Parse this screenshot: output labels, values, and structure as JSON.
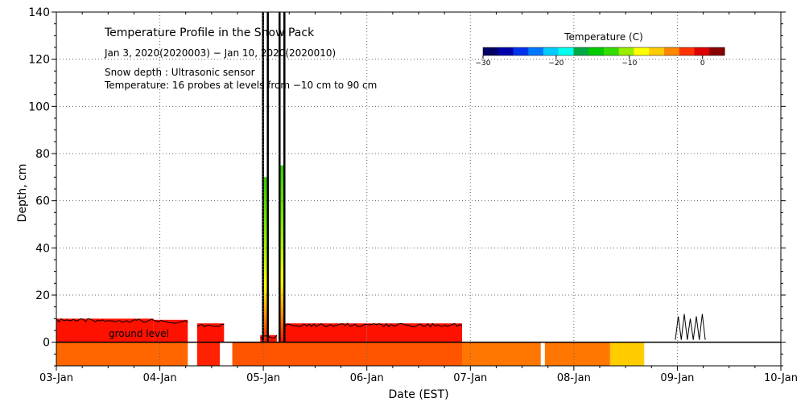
{
  "chart_data": {
    "type": "heatmap",
    "title": "Temperature Profile in the Snow Pack",
    "subtitle": "Jan  3, 2020(2020003) − Jan 10, 2020(2020010)",
    "notes": [
      "Snow depth : Ultrasonic sensor",
      "Temperature: 16 probes at levels from −10 cm to 90 cm"
    ],
    "ground_label": "ground level",
    "xlabel": "Date (EST)",
    "ylabel": "Depth, cm",
    "x_ticks": [
      "03-Jan",
      "04-Jan",
      "05-Jan",
      "06-Jan",
      "07-Jan",
      "08-Jan",
      "09-Jan",
      "10-Jan"
    ],
    "xlim": [
      0,
      7
    ],
    "ylim": [
      -10,
      140
    ],
    "y_ticks": [
      0,
      20,
      40,
      60,
      80,
      100,
      120,
      140
    ],
    "grid": true,
    "colorbar": {
      "title": "Temperature (C)",
      "range": [
        -30,
        3
      ],
      "ticks": [
        -30,
        -20,
        -10,
        0
      ],
      "placement": "top-right",
      "colors": [
        "#000066",
        "#0000aa",
        "#0033ee",
        "#0077ff",
        "#00ccff",
        "#00ffee",
        "#00aa44",
        "#00cc00",
        "#33dd00",
        "#99ee00",
        "#ffff00",
        "#ffcc00",
        "#ff8800",
        "#ff3300",
        "#dd0000",
        "#880000"
      ]
    },
    "series": [
      {
        "name": "snow temperature",
        "x_start": 0.0,
        "x_end": 0.94,
        "top": 10,
        "color": "#ff1100"
      },
      {
        "name": "snow temperature",
        "x_start": 0.94,
        "x_end": 1.27,
        "top": 9.5,
        "color": "#ff1100"
      },
      {
        "name": "snow temperature",
        "x_start": 1.36,
        "x_end": 1.62,
        "top": 8,
        "color": "#ff1100"
      },
      {
        "name": "snow temperature",
        "x_start": 1.97,
        "x_end": 2.13,
        "top": 3,
        "color": "#ff1100"
      },
      {
        "name": "snow temperature",
        "x_start": 2.21,
        "x_end": 3.0,
        "top": 8,
        "color": "#ff1100"
      },
      {
        "name": "snow temperature",
        "x_start": 3.0,
        "x_end": 3.92,
        "top": 8,
        "color": "#ff1100"
      },
      {
        "name": "ground temperature",
        "x_start": 0.0,
        "x_end": 1.27,
        "top": 0,
        "color": "#ff6600"
      },
      {
        "name": "ground temperature",
        "x_start": 1.36,
        "x_end": 1.58,
        "top": 0,
        "color": "#ff2200"
      },
      {
        "name": "ground temperature",
        "x_start": 1.7,
        "x_end": 3.92,
        "top": 0,
        "color": "#ff5500"
      },
      {
        "name": "ground temperature",
        "x_start": 3.92,
        "x_end": 4.68,
        "top": 0,
        "color": "#ff7700"
      },
      {
        "name": "ground temperature",
        "x_start": 4.72,
        "x_end": 5.35,
        "top": 0,
        "color": "#ff7700"
      },
      {
        "name": "ground temperature",
        "x_start": 5.35,
        "x_end": 5.68,
        "top": 0,
        "color": "#ffcc00"
      }
    ],
    "spikes": [
      {
        "x": 2.02,
        "top": 70
      },
      {
        "x": 2.18,
        "top": 75
      }
    ],
    "snow_depth_spikes": [
      6.0,
      6.25
    ],
    "snow_depth_spike_top": 12
  }
}
